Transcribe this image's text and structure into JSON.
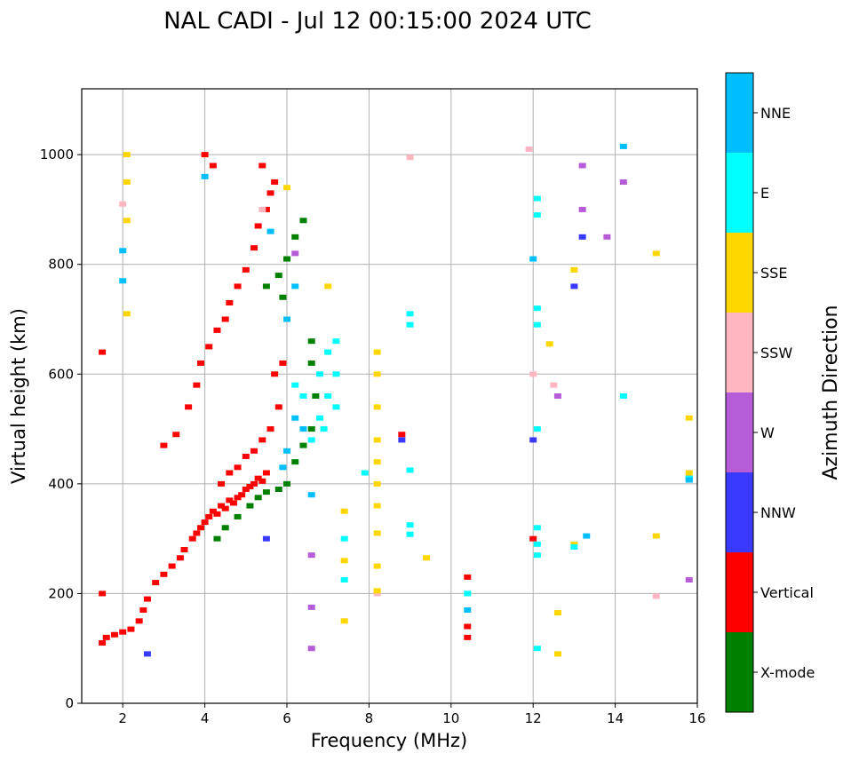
{
  "chart_data": {
    "type": "scatter",
    "title": "NAL CADI - Jul 12 00:15:00 2024 UTC",
    "xlabel": "Frequency (MHz)",
    "ylabel": "Virtual height (km)",
    "xlim": [
      1,
      16
    ],
    "ylim": [
      0,
      1120
    ],
    "xticks": [
      2,
      4,
      6,
      8,
      10,
      12,
      14,
      16
    ],
    "yticks": [
      0,
      200,
      400,
      600,
      800,
      1000
    ],
    "grid": true,
    "colorbar": {
      "title": "Azimuth Direction",
      "position": "right",
      "categories": [
        {
          "name": "X-mode",
          "color": "#008000"
        },
        {
          "name": "Vertical",
          "color": "#ff0000"
        },
        {
          "name": "NNW",
          "color": "#3a3aff"
        },
        {
          "name": "W",
          "color": "#b65cd9"
        },
        {
          "name": "SSW",
          "color": "#ffb6c1"
        },
        {
          "name": "SSE",
          "color": "#ffd700"
        },
        {
          "name": "E",
          "color": "#00ffff"
        },
        {
          "name": "NNE",
          "color": "#00bfff"
        }
      ]
    },
    "series": [
      {
        "name": "Vertical",
        "points": [
          [
            1.5,
            110
          ],
          [
            1.6,
            120
          ],
          [
            1.8,
            125
          ],
          [
            2.0,
            130
          ],
          [
            2.2,
            135
          ],
          [
            2.4,
            150
          ],
          [
            2.5,
            170
          ],
          [
            2.6,
            190
          ],
          [
            2.8,
            220
          ],
          [
            3.0,
            235
          ],
          [
            3.2,
            250
          ],
          [
            3.4,
            265
          ],
          [
            3.5,
            280
          ],
          [
            3.7,
            300
          ],
          [
            3.8,
            310
          ],
          [
            3.9,
            320
          ],
          [
            4.0,
            330
          ],
          [
            4.1,
            340
          ],
          [
            4.2,
            350
          ],
          [
            4.3,
            345
          ],
          [
            4.4,
            360
          ],
          [
            4.5,
            355
          ],
          [
            4.6,
            370
          ],
          [
            4.7,
            365
          ],
          [
            4.8,
            375
          ],
          [
            4.9,
            380
          ],
          [
            5.0,
            390
          ],
          [
            5.1,
            395
          ],
          [
            5.2,
            400
          ],
          [
            5.3,
            410
          ],
          [
            5.4,
            405
          ],
          [
            5.5,
            420
          ],
          [
            4.4,
            400
          ],
          [
            4.6,
            420
          ],
          [
            4.8,
            430
          ],
          [
            5.0,
            450
          ],
          [
            5.2,
            460
          ],
          [
            5.4,
            480
          ],
          [
            5.6,
            500
          ],
          [
            5.8,
            540
          ],
          [
            5.7,
            600
          ],
          [
            5.9,
            620
          ],
          [
            3.0,
            470
          ],
          [
            3.3,
            490
          ],
          [
            3.6,
            540
          ],
          [
            3.8,
            580
          ],
          [
            3.9,
            620
          ],
          [
            4.1,
            650
          ],
          [
            4.3,
            680
          ],
          [
            4.5,
            700
          ],
          [
            4.6,
            730
          ],
          [
            4.8,
            760
          ],
          [
            5.0,
            790
          ],
          [
            5.2,
            830
          ],
          [
            5.3,
            870
          ],
          [
            5.5,
            900
          ],
          [
            5.7,
            950
          ],
          [
            4.0,
            1000
          ],
          [
            4.2,
            980
          ],
          [
            5.4,
            980
          ],
          [
            5.6,
            930
          ],
          [
            1.5,
            640
          ],
          [
            1.5,
            200
          ],
          [
            8.8,
            490
          ],
          [
            10.4,
            120
          ],
          [
            10.4,
            140
          ],
          [
            10.4,
            230
          ],
          [
            12.0,
            300
          ]
        ]
      },
      {
        "name": "X-mode",
        "points": [
          [
            4.3,
            300
          ],
          [
            4.5,
            320
          ],
          [
            4.8,
            340
          ],
          [
            5.1,
            360
          ],
          [
            5.3,
            375
          ],
          [
            5.5,
            385
          ],
          [
            5.8,
            390
          ],
          [
            6.0,
            400
          ],
          [
            6.2,
            440
          ],
          [
            6.4,
            470
          ],
          [
            6.6,
            500
          ],
          [
            6.7,
            560
          ],
          [
            6.6,
            620
          ],
          [
            6.6,
            660
          ],
          [
            5.8,
            780
          ],
          [
            6.0,
            810
          ],
          [
            6.2,
            850
          ],
          [
            6.4,
            880
          ],
          [
            5.9,
            740
          ],
          [
            5.5,
            760
          ]
        ]
      },
      {
        "name": "NNW",
        "points": [
          [
            2.6,
            90
          ],
          [
            5.5,
            300
          ],
          [
            8.8,
            480
          ],
          [
            12.0,
            480
          ],
          [
            13.0,
            760
          ],
          [
            13.2,
            850
          ],
          [
            15.8,
            410
          ]
        ]
      },
      {
        "name": "W",
        "points": [
          [
            6.6,
            100
          ],
          [
            6.6,
            175
          ],
          [
            6.6,
            270
          ],
          [
            12.6,
            560
          ],
          [
            13.2,
            900
          ],
          [
            13.2,
            980
          ],
          [
            14.2,
            950
          ],
          [
            13.8,
            850
          ],
          [
            15.8,
            225
          ],
          [
            6.2,
            820
          ]
        ]
      },
      {
        "name": "SSW",
        "points": [
          [
            2.0,
            910
          ],
          [
            5.4,
            900
          ],
          [
            8.2,
            200
          ],
          [
            9.0,
            995
          ],
          [
            11.9,
            1010
          ],
          [
            12.5,
            580
          ],
          [
            15.0,
            195
          ],
          [
            12.0,
            600
          ]
        ]
      },
      {
        "name": "SSE",
        "points": [
          [
            2.1,
            1000
          ],
          [
            2.1,
            950
          ],
          [
            2.1,
            880
          ],
          [
            2.1,
            710
          ],
          [
            8.2,
            640
          ],
          [
            8.2,
            600
          ],
          [
            8.2,
            540
          ],
          [
            8.2,
            480
          ],
          [
            8.2,
            440
          ],
          [
            8.2,
            400
          ],
          [
            8.2,
            360
          ],
          [
            8.2,
            310
          ],
          [
            8.2,
            250
          ],
          [
            8.2,
            205
          ],
          [
            7.4,
            150
          ],
          [
            7.4,
            260
          ],
          [
            7.4,
            350
          ],
          [
            9.4,
            265
          ],
          [
            12.6,
            165
          ],
          [
            12.6,
            90
          ],
          [
            13.0,
            290
          ],
          [
            13.0,
            790
          ],
          [
            12.4,
            655
          ],
          [
            15.0,
            820
          ],
          [
            15.0,
            305
          ],
          [
            15.8,
            520
          ],
          [
            15.8,
            420
          ],
          [
            6.0,
            940
          ],
          [
            7.0,
            760
          ]
        ]
      },
      {
        "name": "E",
        "points": [
          [
            6.8,
            600
          ],
          [
            7.0,
            640
          ],
          [
            7.2,
            660
          ],
          [
            7.0,
            560
          ],
          [
            7.2,
            540
          ],
          [
            6.8,
            520
          ],
          [
            6.9,
            500
          ],
          [
            7.2,
            600
          ],
          [
            6.6,
            480
          ],
          [
            6.4,
            560
          ],
          [
            6.2,
            580
          ],
          [
            7.4,
            300
          ],
          [
            7.4,
            225
          ],
          [
            9.0,
            710
          ],
          [
            9.0,
            690
          ],
          [
            9.0,
            425
          ],
          [
            9.0,
            325
          ],
          [
            9.0,
            308
          ],
          [
            12.1,
            920
          ],
          [
            12.1,
            890
          ],
          [
            12.1,
            720
          ],
          [
            12.1,
            690
          ],
          [
            12.1,
            500
          ],
          [
            12.1,
            320
          ],
          [
            12.1,
            290
          ],
          [
            12.1,
            270
          ],
          [
            12.1,
            100
          ],
          [
            13.0,
            285
          ],
          [
            14.2,
            560
          ],
          [
            15.8,
            410
          ],
          [
            7.9,
            420
          ],
          [
            10.4,
            200
          ]
        ]
      },
      {
        "name": "NNE",
        "points": [
          [
            6.2,
            520
          ],
          [
            6.4,
            500
          ],
          [
            6.0,
            460
          ],
          [
            5.9,
            430
          ],
          [
            6.2,
            760
          ],
          [
            6.0,
            700
          ],
          [
            5.6,
            860
          ],
          [
            2.0,
            825
          ],
          [
            2.0,
            770
          ],
          [
            12.0,
            810
          ],
          [
            14.2,
            1015
          ],
          [
            13.3,
            305
          ],
          [
            15.8,
            407
          ],
          [
            6.6,
            380
          ],
          [
            4.0,
            960
          ],
          [
            10.4,
            170
          ]
        ]
      }
    ]
  }
}
